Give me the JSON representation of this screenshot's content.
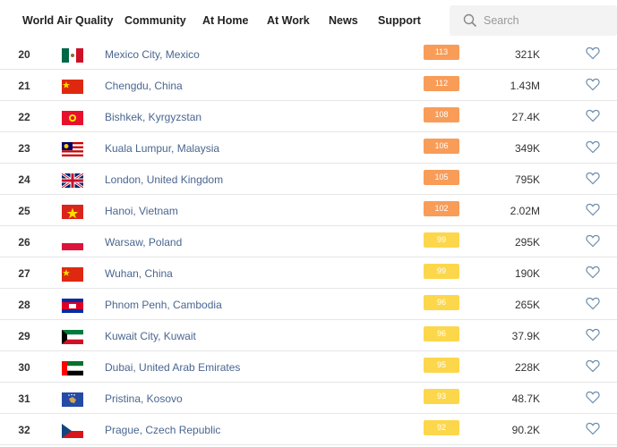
{
  "nav": {
    "items": [
      "World Air Quality",
      "Community",
      "At Home",
      "At Work",
      "News",
      "Support"
    ],
    "search_placeholder": "Search"
  },
  "table": {
    "rows": [
      {
        "rank": 20,
        "city": "Mexico City, Mexico",
        "aqi": 113,
        "followers": "321K"
      },
      {
        "rank": 21,
        "city": "Chengdu, China",
        "aqi": 112,
        "followers": "1.43M"
      },
      {
        "rank": 22,
        "city": "Bishkek, Kyrgyzstan",
        "aqi": 108,
        "followers": "27.4K"
      },
      {
        "rank": 23,
        "city": "Kuala Lumpur, Malaysia",
        "aqi": 106,
        "followers": "349K"
      },
      {
        "rank": 24,
        "city": "London, United Kingdom",
        "aqi": 105,
        "followers": "795K"
      },
      {
        "rank": 25,
        "city": "Hanoi, Vietnam",
        "aqi": 102,
        "followers": "2.02M"
      },
      {
        "rank": 26,
        "city": "Warsaw, Poland",
        "aqi": 99,
        "followers": "295K"
      },
      {
        "rank": 27,
        "city": "Wuhan, China",
        "aqi": 99,
        "followers": "190K"
      },
      {
        "rank": 28,
        "city": "Phnom Penh, Cambodia",
        "aqi": 96,
        "followers": "265K"
      },
      {
        "rank": 29,
        "city": "Kuwait City, Kuwait",
        "aqi": 96,
        "followers": "37.9K"
      },
      {
        "rank": 30,
        "city": "Dubai, United Arab Emirates",
        "aqi": 95,
        "followers": "228K"
      },
      {
        "rank": 31,
        "city": "Pristina, Kosovo",
        "aqi": 93,
        "followers": "48.7K"
      },
      {
        "rank": 32,
        "city": "Prague, Czech Republic",
        "aqi": 92,
        "followers": "90.2K"
      }
    ]
  }
}
